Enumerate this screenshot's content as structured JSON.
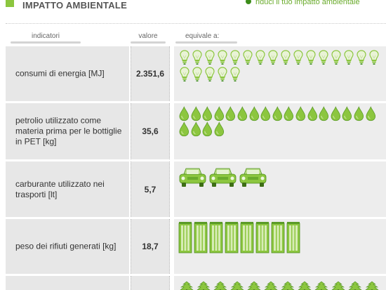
{
  "header": {
    "title": "IMPATTO AMBIENTALE",
    "link_label": "riduci il tuo impatto ambientale"
  },
  "columns": {
    "indicator": "indicatori",
    "value": "valore",
    "equivalent": "equivale a:"
  },
  "rows": [
    {
      "indicator": "consumi di energia [MJ]",
      "value": "2.351,6",
      "icon": "lightbulb-icon",
      "icon_count": 21
    },
    {
      "indicator": "petrolio utilizzato come materia prima per le bottiglie in PET [kg]",
      "value": "35,6",
      "icon": "oil-drop-icon",
      "icon_count": 21
    },
    {
      "indicator": "carburante utilizzato nei trasporti [lt]",
      "value": "5,7",
      "icon": "car-icon",
      "icon_count": 3
    },
    {
      "indicator": "peso dei rifiuti generati [kg]",
      "value": "18,7",
      "icon": "bottle-crate-icon",
      "icon_count": 8
    },
    {
      "indicator": "",
      "value": "",
      "icon": "tree-icon",
      "icon_count": 12
    }
  ],
  "colors": {
    "accent": "#8cc63f",
    "accent_dark": "#3c8c1a",
    "row_bg": "#e7e7e7"
  }
}
